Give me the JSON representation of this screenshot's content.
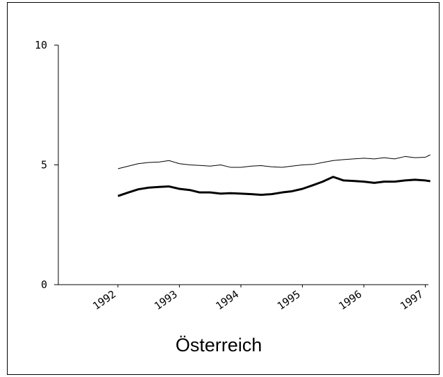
{
  "chart_data": {
    "type": "line",
    "title": "Österreich",
    "x": [
      1992,
      1992.17,
      1992.33,
      1992.5,
      1992.67,
      1992.83,
      1993,
      1993.17,
      1993.33,
      1993.5,
      1993.67,
      1993.83,
      1994,
      1994.17,
      1994.33,
      1994.5,
      1994.67,
      1994.83,
      1995,
      1995.17,
      1995.33,
      1995.5,
      1995.67,
      1995.83,
      1996,
      1996.17,
      1996.33,
      1996.5,
      1996.67,
      1996.83,
      1997,
      1997.08
    ],
    "series": [
      {
        "color": "#000000",
        "width": 1,
        "values": [
          4.84,
          4.95,
          5.05,
          5.1,
          5.12,
          5.18,
          5.05,
          5.0,
          4.98,
          4.95,
          5.0,
          4.9,
          4.9,
          4.95,
          4.97,
          4.92,
          4.9,
          4.95,
          5.0,
          5.02,
          5.1,
          5.18,
          5.22,
          5.25,
          5.28,
          5.25,
          5.3,
          5.25,
          5.35,
          5.3,
          5.32,
          5.42
        ]
      },
      {
        "color": "#000000",
        "width": 3,
        "values": [
          3.7,
          3.85,
          3.98,
          4.05,
          4.08,
          4.1,
          4.0,
          3.95,
          3.85,
          3.85,
          3.8,
          3.82,
          3.8,
          3.78,
          3.75,
          3.78,
          3.85,
          3.9,
          4.0,
          4.15,
          4.3,
          4.5,
          4.35,
          4.33,
          4.3,
          4.25,
          4.3,
          4.3,
          4.35,
          4.38,
          4.35,
          4.32
        ]
      }
    ],
    "xlim": [
      1991.03,
      1997.05
    ],
    "xticks": [
      1992,
      1993,
      1994,
      1995,
      1996,
      1997
    ],
    "ylim": [
      0,
      10
    ],
    "yticks": [
      0,
      5,
      10
    ]
  }
}
